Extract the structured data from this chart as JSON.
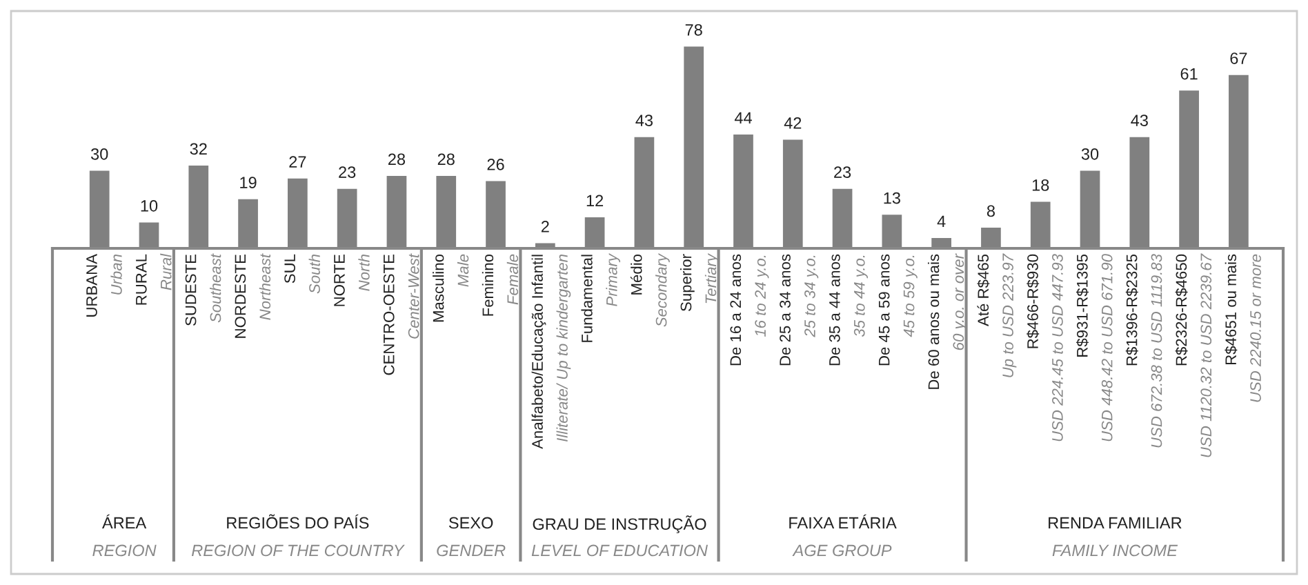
{
  "chart_data": {
    "type": "bar",
    "categories": [
      "URBANA\nUrban",
      "RURAL\nRural",
      "SUDESTE\nSoutheast",
      "NORDESTE\nNortheast",
      "SUL\nSouth",
      "NORTE\nNorth",
      "CENTRO-OESTE\nCenter-West",
      "Masculino\nMale",
      "Feminino\nFemale",
      "Analfabeto/Educação Infantil\nIlliterate/ Up to kindergarten",
      "Fundamental\nPrimary",
      "Médio\nSecondary",
      "Superior\nTertiary",
      "De 16 a 24 anos\n16 to 24 y.o.",
      "De 25 a 34 anos\n25 to 34 y.o.",
      "De 35 a 44 anos\n35 to 44 y.o.",
      "De 45 a 59 anos\n45 to 59 y.o.",
      "De 60 anos ou mais\n60 y.o. or over",
      "Até R$465\nUp to USD 223.97",
      "R$466-R$930\nUSD 224.45 to USD 447.93",
      "R$931-R$1395\nUSD 448.42 to USD 671.90",
      "R$1396-R$2325\nUSD 672.38 to USD 1119.83",
      "R$2326-R$4650\nUSD 1120.32 to USD 2239.67",
      "R$4651 ou mais\nUSD 2240.15 or more"
    ],
    "values": [
      30,
      10,
      32,
      19,
      27,
      23,
      28,
      28,
      26,
      2,
      12,
      43,
      78,
      44,
      42,
      23,
      13,
      4,
      8,
      18,
      30,
      43,
      61,
      67
    ],
    "color": "#808080",
    "data_labels": true,
    "annotations": [
      "ÁREA\nREGION",
      "REGIÕES DO PAÍS\nREGION OF THE COUNTRY",
      "SEXO\nGENDER",
      "GRAU DE INSTRUÇÃO\nLEVEL OF EDUCATION",
      "FAIXA ETÁRIA\nAGE GROUP",
      "RENDA FAMILIAR\nFAMILY INCOME"
    ]
  }
}
